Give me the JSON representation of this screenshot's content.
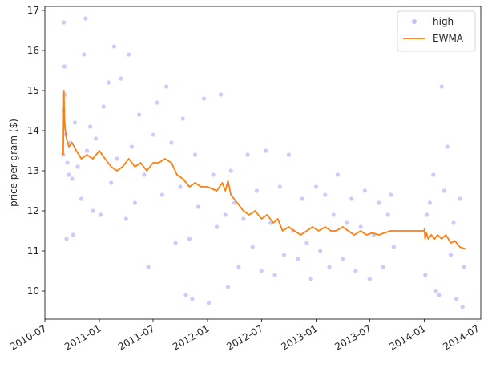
{
  "chart_data": {
    "type": "scatter",
    "title": "",
    "xlabel": "",
    "ylabel": "price per gram ($)",
    "x_axis_type": "date",
    "xlim": [
      "2010-07-01",
      "2014-07-11"
    ],
    "ylim": [
      9.3,
      17.1
    ],
    "x_ticks": [
      "2010-07",
      "2011-01",
      "2011-07",
      "2012-01",
      "2012-07",
      "2013-01",
      "2013-07",
      "2014-01",
      "2014-07"
    ],
    "y_ticks": [
      10,
      11,
      12,
      13,
      14,
      15,
      16,
      17
    ],
    "grid": false,
    "legend_position": "top-right",
    "series": [
      {
        "name": "high",
        "kind": "scatter",
        "color": "#3333ee",
        "points": [
          [
            "2010-09-01",
            13.4
          ],
          [
            "2010-09-02",
            14.5
          ],
          [
            "2010-09-03",
            16.7
          ],
          [
            "2010-09-05",
            15.6
          ],
          [
            "2010-09-08",
            14.9
          ],
          [
            "2010-09-10",
            13.9
          ],
          [
            "2010-09-12",
            11.3
          ],
          [
            "2010-09-15",
            13.2
          ],
          [
            "2010-09-20",
            12.9
          ],
          [
            "2010-09-25",
            13.7
          ],
          [
            "2010-10-01",
            12.8
          ],
          [
            "2010-10-05",
            11.4
          ],
          [
            "2010-10-10",
            14.2
          ],
          [
            "2010-10-20",
            13.1
          ],
          [
            "2010-11-01",
            12.3
          ],
          [
            "2010-11-10",
            15.9
          ],
          [
            "2010-11-15",
            16.8
          ],
          [
            "2010-11-20",
            13.5
          ],
          [
            "2010-12-01",
            14.1
          ],
          [
            "2010-12-10",
            12.0
          ],
          [
            "2010-12-20",
            13.8
          ],
          [
            "2011-01-05",
            11.9
          ],
          [
            "2011-01-15",
            14.6
          ],
          [
            "2011-02-01",
            15.2
          ],
          [
            "2011-02-10",
            12.7
          ],
          [
            "2011-02-20",
            16.1
          ],
          [
            "2011-03-01",
            13.3
          ],
          [
            "2011-03-15",
            15.3
          ],
          [
            "2011-04-01",
            11.8
          ],
          [
            "2011-04-10",
            15.9
          ],
          [
            "2011-04-20",
            13.6
          ],
          [
            "2011-05-01",
            12.2
          ],
          [
            "2011-05-15",
            14.4
          ],
          [
            "2011-06-01",
            12.9
          ],
          [
            "2011-06-15",
            10.6
          ],
          [
            "2011-07-01",
            13.9
          ],
          [
            "2011-07-15",
            14.7
          ],
          [
            "2011-08-01",
            12.4
          ],
          [
            "2011-08-15",
            15.1
          ],
          [
            "2011-09-01",
            13.7
          ],
          [
            "2011-09-15",
            11.2
          ],
          [
            "2011-10-01",
            12.6
          ],
          [
            "2011-10-10",
            14.3
          ],
          [
            "2011-10-20",
            9.9
          ],
          [
            "2011-11-01",
            11.3
          ],
          [
            "2011-11-10",
            9.8
          ],
          [
            "2011-11-20",
            13.4
          ],
          [
            "2011-12-01",
            12.1
          ],
          [
            "2011-12-20",
            14.8
          ],
          [
            "2012-01-05",
            9.7
          ],
          [
            "2012-01-20",
            12.9
          ],
          [
            "2012-02-01",
            11.6
          ],
          [
            "2012-02-15",
            14.9
          ],
          [
            "2012-03-01",
            11.9
          ],
          [
            "2012-03-10",
            10.1
          ],
          [
            "2012-03-20",
            13.0
          ],
          [
            "2012-04-01",
            12.2
          ],
          [
            "2012-04-15",
            10.6
          ],
          [
            "2012-05-01",
            11.8
          ],
          [
            "2012-05-15",
            13.4
          ],
          [
            "2012-06-01",
            11.1
          ],
          [
            "2012-06-15",
            12.5
          ],
          [
            "2012-07-01",
            10.5
          ],
          [
            "2012-07-15",
            13.5
          ],
          [
            "2012-08-01",
            11.7
          ],
          [
            "2012-08-15",
            10.4
          ],
          [
            "2012-09-01",
            12.6
          ],
          [
            "2012-09-15",
            10.9
          ],
          [
            "2012-10-01",
            13.4
          ],
          [
            "2012-10-15",
            11.5
          ],
          [
            "2012-11-01",
            10.8
          ],
          [
            "2012-11-15",
            12.3
          ],
          [
            "2012-12-01",
            11.2
          ],
          [
            "2012-12-15",
            10.3
          ],
          [
            "2013-01-01",
            12.6
          ],
          [
            "2013-01-15",
            11.0
          ],
          [
            "2013-02-01",
            12.4
          ],
          [
            "2013-02-15",
            10.6
          ],
          [
            "2013-03-01",
            11.9
          ],
          [
            "2013-03-15",
            12.9
          ],
          [
            "2013-04-01",
            10.8
          ],
          [
            "2013-04-15",
            11.7
          ],
          [
            "2013-05-01",
            12.3
          ],
          [
            "2013-05-15",
            10.5
          ],
          [
            "2013-06-01",
            11.6
          ],
          [
            "2013-06-15",
            12.5
          ],
          [
            "2013-07-01",
            10.3
          ],
          [
            "2013-07-15",
            11.4
          ],
          [
            "2013-08-01",
            12.2
          ],
          [
            "2013-08-15",
            10.6
          ],
          [
            "2013-09-01",
            11.9
          ],
          [
            "2013-09-10",
            12.4
          ],
          [
            "2013-09-20",
            11.1
          ],
          [
            "2014-01-05",
            10.4
          ],
          [
            "2014-01-10",
            11.9
          ],
          [
            "2014-01-20",
            12.2
          ],
          [
            "2014-02-01",
            12.9
          ],
          [
            "2014-02-10",
            10.0
          ],
          [
            "2014-02-20",
            9.9
          ],
          [
            "2014-03-01",
            15.1
          ],
          [
            "2014-03-10",
            12.5
          ],
          [
            "2014-03-20",
            13.6
          ],
          [
            "2014-04-01",
            10.9
          ],
          [
            "2014-04-10",
            11.7
          ],
          [
            "2014-04-20",
            9.8
          ],
          [
            "2014-05-01",
            12.3
          ],
          [
            "2014-05-10",
            9.6
          ],
          [
            "2014-05-15",
            10.6
          ]
        ]
      },
      {
        "name": "EWMA",
        "kind": "line",
        "color": "#ff7f0e",
        "points": [
          [
            "2010-09-01",
            13.4
          ],
          [
            "2010-09-03",
            15.0
          ],
          [
            "2010-09-05",
            14.3
          ],
          [
            "2010-09-08",
            14.0
          ],
          [
            "2010-09-12",
            13.8
          ],
          [
            "2010-09-20",
            13.6
          ],
          [
            "2010-10-01",
            13.7
          ],
          [
            "2010-10-15",
            13.5
          ],
          [
            "2010-11-01",
            13.3
          ],
          [
            "2010-11-20",
            13.4
          ],
          [
            "2010-12-10",
            13.3
          ],
          [
            "2011-01-01",
            13.5
          ],
          [
            "2011-01-20",
            13.3
          ],
          [
            "2011-02-10",
            13.1
          ],
          [
            "2011-03-01",
            13.0
          ],
          [
            "2011-03-20",
            13.1
          ],
          [
            "2011-04-10",
            13.3
          ],
          [
            "2011-05-01",
            13.1
          ],
          [
            "2011-05-20",
            13.2
          ],
          [
            "2011-06-10",
            13.0
          ],
          [
            "2011-07-01",
            13.2
          ],
          [
            "2011-07-20",
            13.2
          ],
          [
            "2011-08-10",
            13.3
          ],
          [
            "2011-09-01",
            13.2
          ],
          [
            "2011-09-20",
            12.9
          ],
          [
            "2011-10-10",
            12.8
          ],
          [
            "2011-11-01",
            12.6
          ],
          [
            "2011-11-20",
            12.7
          ],
          [
            "2011-12-10",
            12.6
          ],
          [
            "2012-01-01",
            12.6
          ],
          [
            "2012-02-01",
            12.5
          ],
          [
            "2012-02-20",
            12.7
          ],
          [
            "2012-03-01",
            12.5
          ],
          [
            "2012-03-10",
            12.75
          ],
          [
            "2012-03-20",
            12.4
          ],
          [
            "2012-04-10",
            12.2
          ],
          [
            "2012-05-01",
            12.0
          ],
          [
            "2012-05-20",
            11.9
          ],
          [
            "2012-06-10",
            12.0
          ],
          [
            "2012-07-01",
            11.8
          ],
          [
            "2012-07-20",
            11.9
          ],
          [
            "2012-08-10",
            11.7
          ],
          [
            "2012-08-25",
            11.8
          ],
          [
            "2012-09-10",
            11.5
          ],
          [
            "2012-10-01",
            11.6
          ],
          [
            "2012-10-20",
            11.5
          ],
          [
            "2012-11-10",
            11.4
          ],
          [
            "2012-12-01",
            11.5
          ],
          [
            "2012-12-20",
            11.6
          ],
          [
            "2013-01-10",
            11.5
          ],
          [
            "2013-02-01",
            11.6
          ],
          [
            "2013-02-20",
            11.5
          ],
          [
            "2013-03-10",
            11.5
          ],
          [
            "2013-04-01",
            11.6
          ],
          [
            "2013-04-20",
            11.5
          ],
          [
            "2013-05-10",
            11.4
          ],
          [
            "2013-06-01",
            11.5
          ],
          [
            "2013-06-20",
            11.4
          ],
          [
            "2013-07-10",
            11.45
          ],
          [
            "2013-08-01",
            11.4
          ],
          [
            "2013-08-20",
            11.45
          ],
          [
            "2013-09-10",
            11.5
          ],
          [
            "2013-10-01",
            11.5
          ],
          [
            "2014-01-01",
            11.5
          ],
          [
            "2014-01-02",
            11.55
          ],
          [
            "2014-01-04",
            11.3
          ],
          [
            "2014-01-08",
            11.45
          ],
          [
            "2014-01-15",
            11.3
          ],
          [
            "2014-01-25",
            11.4
          ],
          [
            "2014-02-05",
            11.3
          ],
          [
            "2014-02-15",
            11.4
          ],
          [
            "2014-03-01",
            11.3
          ],
          [
            "2014-03-15",
            11.4
          ],
          [
            "2014-04-01",
            11.2
          ],
          [
            "2014-04-15",
            11.25
          ],
          [
            "2014-05-01",
            11.1
          ],
          [
            "2014-05-20",
            11.05
          ]
        ]
      }
    ]
  }
}
